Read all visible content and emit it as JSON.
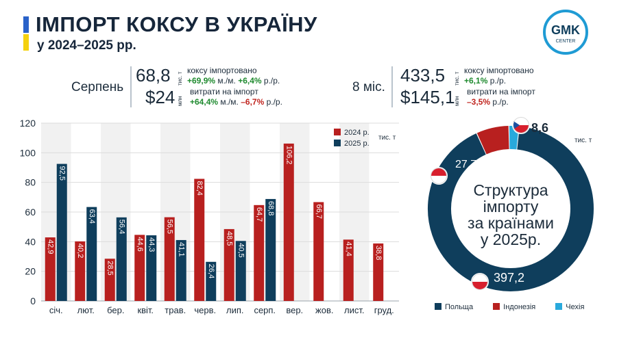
{
  "header": {
    "title": "ІМПОРТ КОКСУ В УКРАЇНУ",
    "subtitle": "у 2024–2025 рр.",
    "logo_line1": "GMK",
    "logo_line2": "CENTER",
    "flag_colors": [
      "#2a62c9",
      "#f4d10f"
    ]
  },
  "kpi_month": {
    "label": "Серпень",
    "volume": "68,8",
    "volume_unit": "тис. т",
    "volume_desc": "коксу імпортовано",
    "volume_mm": "+69,9%",
    "volume_mm_suffix": " м./м. ",
    "volume_yy": "+6,4%",
    "volume_yy_suffix": " р./р.",
    "cost": "$24",
    "cost_unit": "млн",
    "cost_desc": "витрати на імпорт",
    "cost_mm": "+64,4%",
    "cost_mm_suffix": " м./м. ",
    "cost_yy": "–6,7%",
    "cost_yy_suffix": " р./р."
  },
  "kpi_ytd": {
    "label": "8 міс.",
    "volume": "433,5",
    "volume_unit": "тис. т",
    "volume_desc": "коксу імпортовано",
    "volume_yy": "+6,1%",
    "volume_yy_suffix": " р./р.",
    "cost": "$145,1",
    "cost_unit": "млн",
    "cost_desc": "витрати на імпорт",
    "cost_yy": "–3,5%",
    "cost_yy_suffix": " р./р."
  },
  "colors": {
    "y2024": "#b8201f",
    "y2025": "#0f3e5c",
    "czech": "#29a9dc",
    "grid": "#e6e6e6",
    "text": "#1b2b3a"
  },
  "chart_data": [
    {
      "type": "bar",
      "categories": [
        "січ.",
        "лют.",
        "бер.",
        "квіт.",
        "трав.",
        "черв.",
        "лип.",
        "серп.",
        "вер.",
        "жов.",
        "лист.",
        "груд."
      ],
      "series": [
        {
          "name": "2024 р.",
          "values": [
            42.9,
            40.2,
            28.5,
            44.6,
            56.5,
            82.4,
            48.5,
            64.7,
            106.2,
            66.7,
            41.4,
            38.8
          ],
          "labels": [
            "42,9",
            "40,2",
            "28,5",
            "44,6",
            "56,5",
            "82,4",
            "48,5",
            "64,7",
            "106,2",
            "66,7",
            "41,4",
            "38,8"
          ]
        },
        {
          "name": "2025 р.",
          "values": [
            92.5,
            63.4,
            56.4,
            44.3,
            41.1,
            26.4,
            40.5,
            68.8,
            null,
            null,
            null,
            null
          ],
          "labels": [
            "92,5",
            "63,4",
            "56,4",
            "44,3",
            "41,1",
            "26,4",
            "40,5",
            "68,8",
            "",
            "",
            "",
            ""
          ]
        }
      ],
      "yticks": [
        "0",
        "20",
        "40",
        "60",
        "80",
        "100",
        "120"
      ],
      "ylim": [
        0,
        120
      ],
      "unit_label": "тис. т",
      "legend_position": "top-right"
    },
    {
      "type": "pie",
      "title_lines": [
        "Структура",
        "імпорту",
        "за країнами",
        "у 2025р."
      ],
      "unit_label": "тис. т",
      "slices": [
        {
          "name": "Польща",
          "value": 397.2,
          "label": "397,2"
        },
        {
          "name": "Індонезія",
          "value": 27.7,
          "label": "27,7"
        },
        {
          "name": "Чехія",
          "value": 8.6,
          "label": "8,6"
        }
      ],
      "legend_position": "bottom"
    }
  ]
}
